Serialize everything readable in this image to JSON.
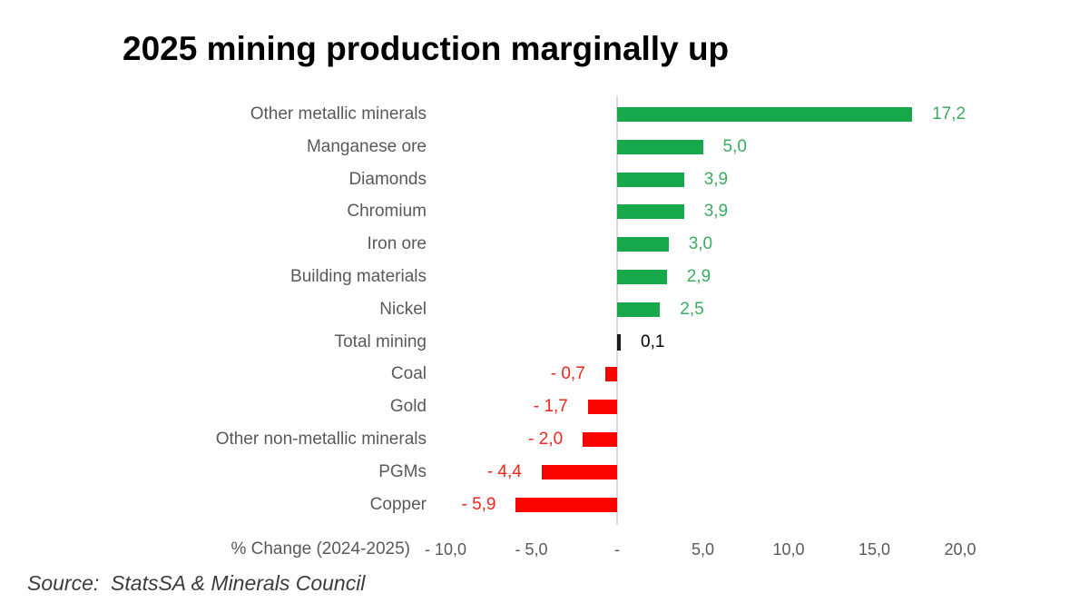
{
  "title": "2025 mining production marginally up",
  "source_note": "Source:  StatsSA & Minerals Council",
  "chart_data": {
    "type": "bar",
    "orientation": "horizontal",
    "title": "2025 mining production marginally up",
    "xlabel": "% Change (2024-2025)",
    "ylabel": "",
    "xlim": [
      -10,
      20
    ],
    "grid": false,
    "legend": false,
    "decimal_separator": ",",
    "categories": [
      "Other metallic minerals",
      "Manganese ore",
      "Diamonds",
      "Chromium",
      "Iron ore",
      "Building materials",
      "Nickel",
      "Total mining",
      "Coal",
      "Gold",
      "Other non-metallic minerals",
      "PGMs",
      "Copper"
    ],
    "values": [
      17.2,
      5.0,
      3.9,
      3.9,
      3.0,
      2.9,
      2.5,
      0.1,
      -0.7,
      -1.7,
      -2.0,
      -4.4,
      -5.9
    ],
    "value_labels": [
      "17,2",
      "5,0",
      "3,9",
      "3,9",
      "3,0",
      "2,9",
      "2,5",
      "0,1",
      "- 0,7",
      "- 1,7",
      "- 2,0",
      "- 4,4",
      "- 5,9"
    ],
    "kinds": [
      "positive",
      "positive",
      "positive",
      "positive",
      "positive",
      "positive",
      "positive",
      "total",
      "negative",
      "negative",
      "negative",
      "negative",
      "negative"
    ],
    "x_tick_values": [
      -10,
      -5,
      0,
      5,
      10,
      15,
      20
    ],
    "x_tick_labels": [
      "- 10,0",
      "- 5,0",
      "-",
      "5,0",
      "10,0",
      "15,0",
      "20,0"
    ],
    "colors": {
      "positive_bar": "#17A84C",
      "negative_bar": "#FB0300",
      "total_bar": "#1A1A1A",
      "positive_label": "#3BAC61",
      "negative_label": "#F3241C",
      "total_label": "#000000",
      "category_label": "#595959",
      "tick_label": "#595959",
      "axis_line": "#D9D9D9",
      "title": "#000000",
      "source": "#3C3C3C"
    }
  }
}
